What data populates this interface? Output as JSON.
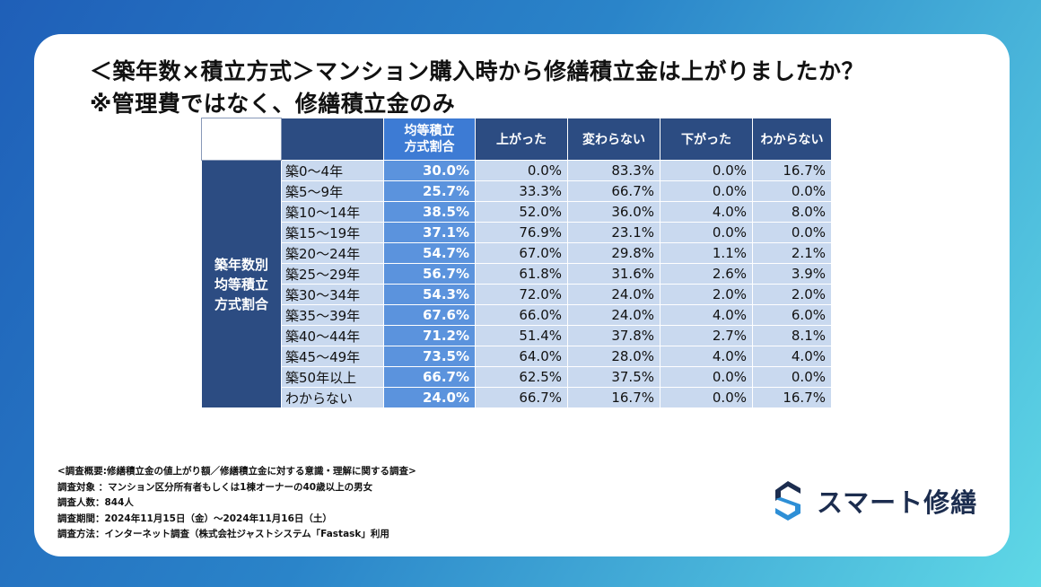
{
  "title": {
    "line1": "＜築年数×積立方式＞マンション購入時から修繕積立金は上がりましたか？",
    "line2": "※管理費ではなく、修繕積立金のみ"
  },
  "table": {
    "group_label": [
      "築年数別",
      "均等積立",
      "方式割合"
    ],
    "headers": {
      "rate": [
        "均等積立",
        "方式割合"
      ],
      "up": "上がった",
      "same": "変わらない",
      "down": "下がった",
      "unknown": "わからない"
    },
    "rows": [
      {
        "age": "築0～4年",
        "rate": "30.0%",
        "up": "0.0%",
        "same": "83.3%",
        "down": "0.0%",
        "unknown": "16.7%"
      },
      {
        "age": "築5～9年",
        "rate": "25.7%",
        "up": "33.3%",
        "same": "66.7%",
        "down": "0.0%",
        "unknown": "0.0%"
      },
      {
        "age": "築10～14年",
        "rate": "38.5%",
        "up": "52.0%",
        "same": "36.0%",
        "down": "4.0%",
        "unknown": "8.0%"
      },
      {
        "age": "築15～19年",
        "rate": "37.1%",
        "up": "76.9%",
        "same": "23.1%",
        "down": "0.0%",
        "unknown": "0.0%"
      },
      {
        "age": "築20～24年",
        "rate": "54.7%",
        "up": "67.0%",
        "same": "29.8%",
        "down": "1.1%",
        "unknown": "2.1%"
      },
      {
        "age": "築25～29年",
        "rate": "56.7%",
        "up": "61.8%",
        "same": "31.6%",
        "down": "2.6%",
        "unknown": "3.9%"
      },
      {
        "age": "築30～34年",
        "rate": "54.3%",
        "up": "72.0%",
        "same": "24.0%",
        "down": "2.0%",
        "unknown": "2.0%"
      },
      {
        "age": "築35～39年",
        "rate": "67.6%",
        "up": "66.0%",
        "same": "24.0%",
        "down": "4.0%",
        "unknown": "6.0%"
      },
      {
        "age": "築40～44年",
        "rate": "71.2%",
        "up": "51.4%",
        "same": "37.8%",
        "down": "2.7%",
        "unknown": "8.1%"
      },
      {
        "age": "築45～49年",
        "rate": "73.5%",
        "up": "64.0%",
        "same": "28.0%",
        "down": "4.0%",
        "unknown": "4.0%"
      },
      {
        "age": "築50年以上",
        "rate": "66.7%",
        "up": "62.5%",
        "same": "37.5%",
        "down": "0.0%",
        "unknown": "0.0%"
      },
      {
        "age": "わからない",
        "rate": "24.0%",
        "up": "66.7%",
        "same": "16.7%",
        "down": "0.0%",
        "unknown": "16.7%"
      }
    ]
  },
  "notes": [
    "<調査概要:修繕積立金の値上がり額／修繕積立金に対する意識・理解に関する調査>",
    "調査対象 ：マンション区分所有者もしくは1棟オーナーの40歳以上の男女",
    "調査人数：844人",
    "調査期間：2024年11月15日（金）～2024年11月16日（土）",
    "調査方法：インターネット調査（株式会社ジャストシステム「Fastask」利用"
  ],
  "logo": {
    "text": "スマート修繕",
    "icon": "s-logo-icon"
  },
  "colors": {
    "header": "#2c4c82",
    "rate_col": "#5b93dd",
    "cell": "#c9d9ef",
    "logo_dark": "#1c2d4f",
    "logo_blue": "#2e8fd6"
  }
}
